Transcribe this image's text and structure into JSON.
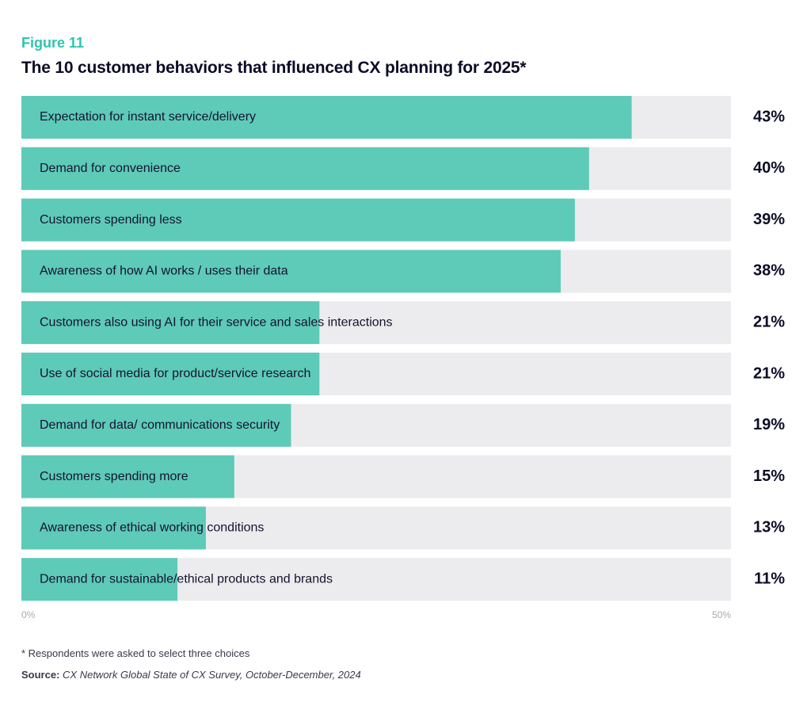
{
  "figure_label": "Figure 11",
  "title": "The 10 customer behaviors that influenced CX planning for 2025*",
  "footnote": "* Respondents were asked to select three choices",
  "source": {
    "label": "Source:",
    "text": "CX Network Global State of CX Survey, October-December, 2024"
  },
  "colors": {
    "bar": "#5ecab8",
    "track": "#ececee",
    "label_accent": "#2ec4b0"
  },
  "chart_data": {
    "type": "bar",
    "orientation": "horizontal",
    "title": "The 10 customer behaviors that influenced CX planning for 2025*",
    "categories": [
      "Expectation for instant service/delivery",
      "Demand for convenience",
      "Customers spending less",
      "Awareness of how AI works / uses their data",
      "Customers also using AI for their service and sales interactions",
      "Use of social media for product/service research",
      "Demand for data/ communications security",
      "Customers spending more",
      "Awareness of ethical working conditions",
      "Demand for sustainable/ethical products and brands"
    ],
    "values": [
      43,
      40,
      39,
      38,
      21,
      21,
      19,
      15,
      13,
      11
    ],
    "value_labels": [
      "43%",
      "40%",
      "39%",
      "38%",
      "21%",
      "21%",
      "19%",
      "15%",
      "13%",
      "11%"
    ],
    "xlim": [
      0,
      50
    ],
    "x_ticks": [
      "0%",
      "50%"
    ],
    "grid": false,
    "legend": "none"
  }
}
